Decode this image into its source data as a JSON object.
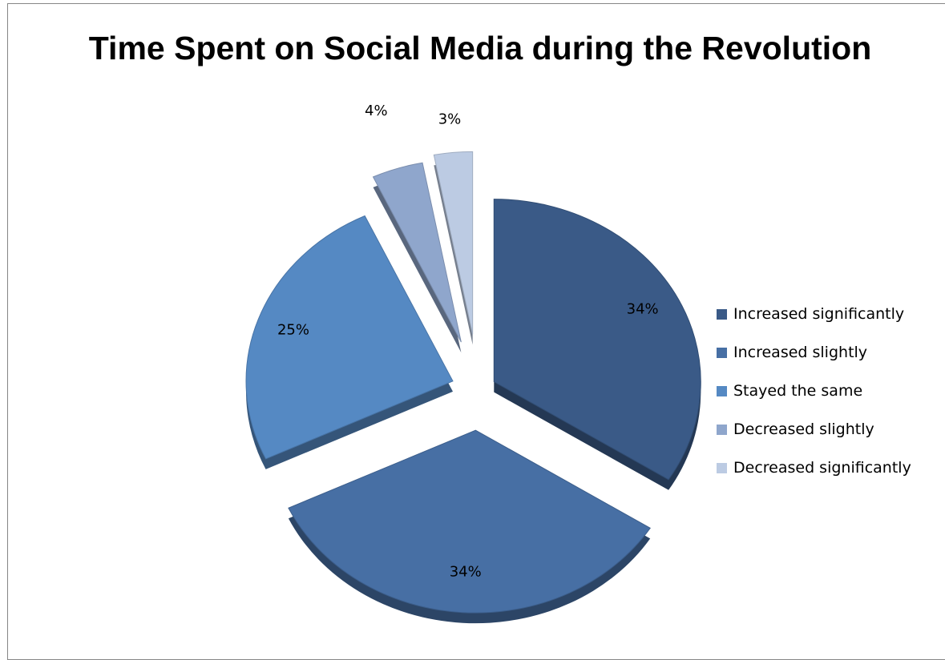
{
  "chart_data": {
    "type": "pie",
    "title": "Time Spent on Social Media during the Revolution",
    "categories": [
      "Increased significantly",
      "Increased slightly",
      "Stayed the same",
      "Decreased slightly",
      "Decreased significantly"
    ],
    "values": [
      34,
      34,
      25,
      4,
      3
    ],
    "labels": [
      "34%",
      "34%",
      "25%",
      "4%",
      "3%"
    ],
    "colors": [
      "#3a5a87",
      "#476fa4",
      "#5589c3",
      "#8fa6cc",
      "#bccbe3"
    ],
    "exploded": true,
    "legend_position": "right"
  }
}
